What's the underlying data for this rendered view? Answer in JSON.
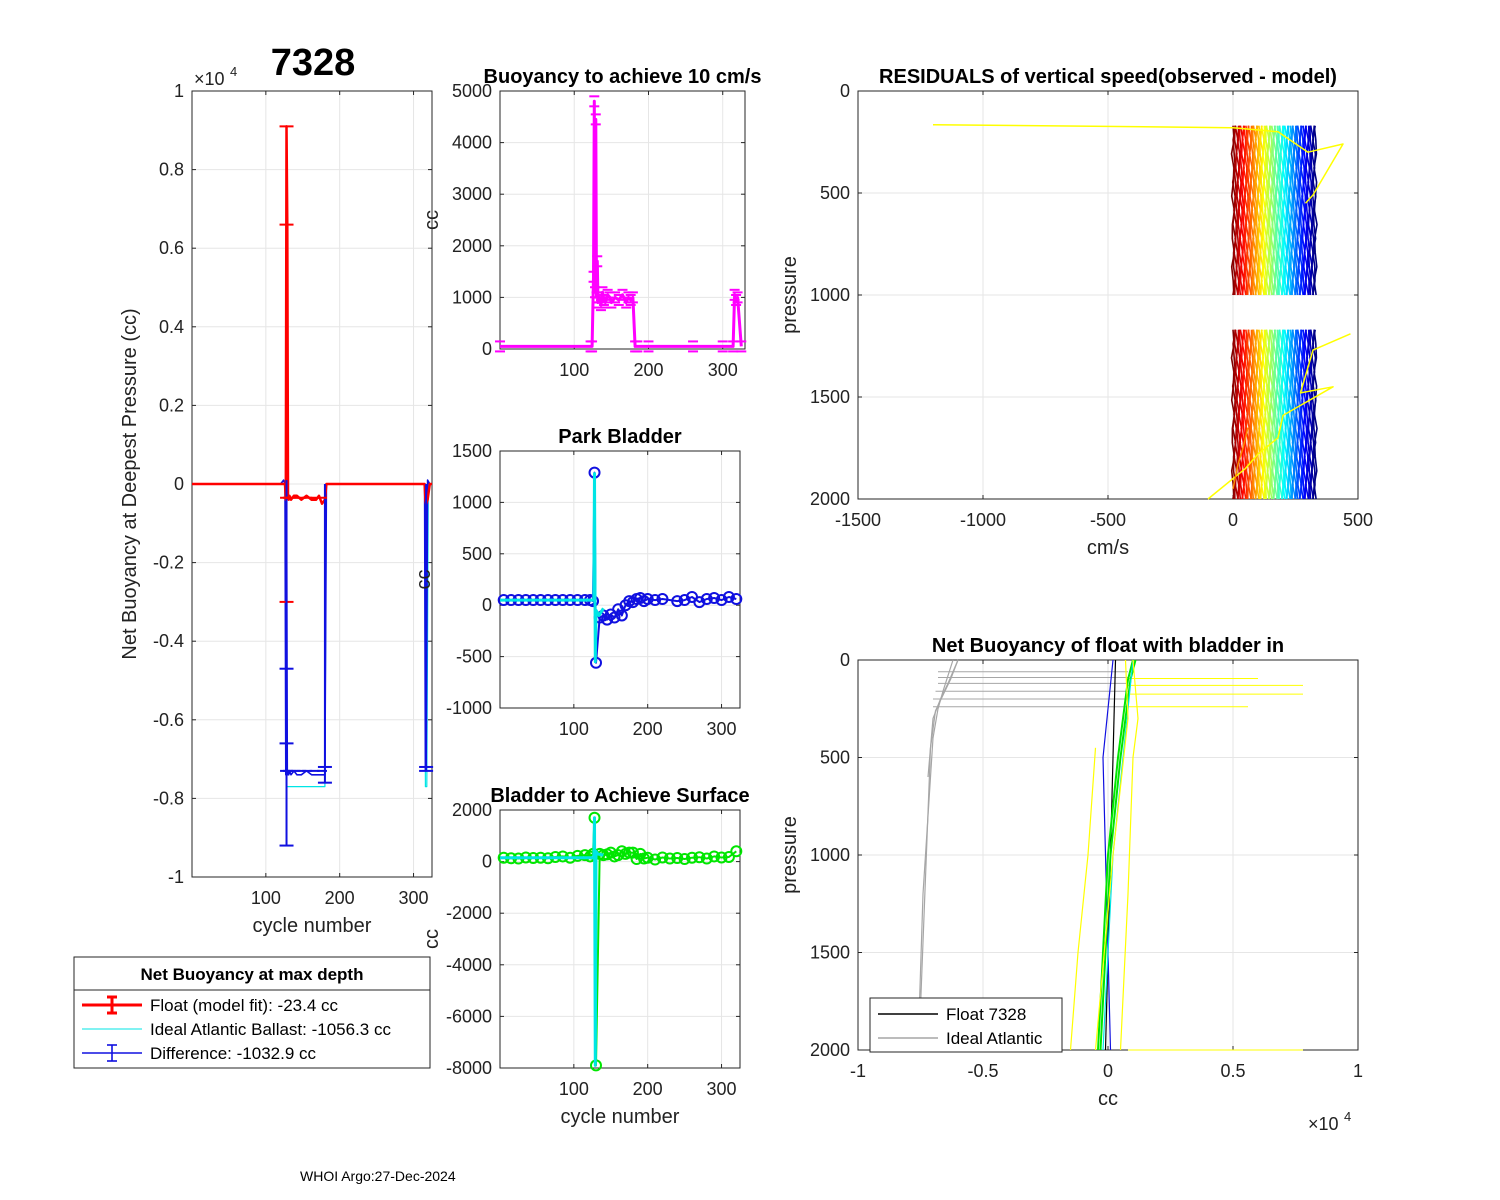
{
  "figure": {
    "title": "7328",
    "footer": "WHOI Argo:27-Dec-2024"
  },
  "chart_data": [
    {
      "id": "netbuoy",
      "type": "line",
      "title": "7328",
      "xlabel": "cycle number",
      "ylabel": "Net Buoyancy at Deepest Pressure (cc)",
      "exponent_label": "×10",
      "exponent_power": "4",
      "xlim": [
        0,
        325
      ],
      "ylim": [
        -1,
        1
      ],
      "xticks": [
        100,
        200,
        300
      ],
      "yticks": [
        -1,
        -0.8,
        -0.6,
        -0.4,
        -0.2,
        0,
        0.2,
        0.4,
        0.6,
        0.8,
        1
      ],
      "ytick_labels": [
        "-1",
        "-0.8",
        "-0.6",
        "-0.4",
        "-0.2",
        "0",
        "0.2",
        "0.4",
        "0.6",
        "0.8",
        "1"
      ],
      "series": [
        {
          "name": "Ideal Atlantic Ballast",
          "color": "#00e5e5",
          "x": [
            0,
            120,
            126,
            128,
            132,
            140,
            150,
            160,
            170,
            180,
            182,
            184,
            200,
            260,
            300,
            315,
            316,
            318,
            320
          ],
          "y": [
            0,
            0,
            0,
            -0.77,
            -0.77,
            -0.77,
            -0.77,
            -0.77,
            -0.77,
            -0.77,
            0,
            0,
            0,
            0,
            0,
            0,
            -0.77,
            -0.77,
            0
          ]
        },
        {
          "name": "Difference",
          "color": "#1010e0",
          "x": [
            0,
            120,
            124,
            126,
            127,
            128,
            129,
            130,
            131,
            132,
            134,
            138,
            142,
            148,
            155,
            162,
            170,
            176,
            180,
            182,
            184,
            200,
            260,
            300,
            314,
            315,
            316,
            317,
            319,
            322
          ],
          "y": [
            0,
            0,
            0.01,
            0,
            -0.74,
            0.01,
            -0.74,
            -0.73,
            -0.74,
            -0.73,
            -0.74,
            -0.73,
            -0.74,
            -0.74,
            -0.73,
            -0.74,
            -0.74,
            -0.74,
            -0.74,
            0,
            0,
            0,
            0,
            0,
            0,
            0,
            -0.73,
            -0.73,
            0.01,
            0
          ]
        },
        {
          "name": "Float (model fit)",
          "color": "#ff0000",
          "x": [
            0,
            120,
            124,
            126,
            127,
            128,
            129,
            130,
            131,
            132,
            134,
            138,
            142,
            148,
            155,
            162,
            168,
            172,
            176,
            180,
            182,
            184,
            200,
            260,
            300,
            314,
            315,
            316,
            317,
            319,
            322,
            325
          ],
          "y": [
            0,
            0,
            0,
            0,
            -0.04,
            0.91,
            0.66,
            -0.03,
            -0.04,
            -0.03,
            -0.04,
            -0.03,
            -0.03,
            -0.04,
            -0.03,
            -0.04,
            -0.04,
            -0.03,
            -0.05,
            -0.04,
            0,
            0,
            0,
            0,
            0,
            0,
            0,
            -0.04,
            -0.05,
            -0.04,
            0,
            0
          ]
        }
      ],
      "errorbars": [
        {
          "series": "Float (model fit)",
          "x": 128,
          "low": -0.3,
          "high": 0.91,
          "caps": [
            0.91,
            0.66,
            -0.3
          ]
        },
        {
          "series": "Difference",
          "x": 128,
          "low": -0.92,
          "high": 0.01,
          "caps": [
            -0.47,
            -0.66,
            -0.92
          ]
        },
        {
          "series": "Difference",
          "x": 180,
          "low": -0.76,
          "high": 0,
          "caps": [
            -0.72,
            -0.76
          ]
        },
        {
          "series": "Difference",
          "x": 317,
          "low": -0.73,
          "high": 0,
          "caps": [
            -0.72,
            -0.73
          ]
        }
      ],
      "legend": {
        "title": "Net Buoyancy at max depth",
        "entries": [
          {
            "label": "Float (model fit): -23.4 cc",
            "color": "#ff0000"
          },
          {
            "label": "Ideal Atlantic Ballast: -1056.3 cc",
            "color": "#00e5e5"
          },
          {
            "label": "Difference: -1032.9 cc",
            "color": "#1010e0"
          }
        ]
      }
    },
    {
      "id": "buoy10",
      "type": "line",
      "title": "Buoyancy to achieve 10 cm/s",
      "xlabel": "",
      "ylabel": "cc",
      "xlim": [
        0,
        330
      ],
      "ylim": [
        0,
        5000
      ],
      "xticks": [
        100,
        200,
        300
      ],
      "yticks": [
        0,
        1000,
        2000,
        3000,
        4000,
        5000
      ],
      "series": [
        {
          "name": "buoyancy",
          "color": "#ff00ff",
          "x": [
            0,
            122,
            124,
            126,
            127,
            128,
            129,
            130,
            131,
            132,
            134,
            136,
            138,
            140,
            142,
            145,
            148,
            150,
            155,
            160,
            165,
            170,
            173,
            176,
            179,
            182,
            185,
            200,
            260,
            300,
            314,
            316,
            318,
            320,
            325
          ],
          "y": [
            50,
            50,
            50,
            1400,
            4800,
            1100,
            4450,
            1000,
            1700,
            900,
            1000,
            850,
            1100,
            950,
            900,
            1050,
            1000,
            900,
            1000,
            950,
            1050,
            900,
            1000,
            950,
            1000,
            50,
            50,
            50,
            50,
            50,
            50,
            1050,
            950,
            1000,
            50
          ]
        }
      ]
    },
    {
      "id": "park",
      "type": "scatter",
      "title": "Park Bladder",
      "xlabel": "",
      "ylabel": "cc",
      "xlim": [
        0,
        325
      ],
      "ylim": [
        -1000,
        1500
      ],
      "xticks": [
        100,
        200,
        300
      ],
      "yticks": [
        -1000,
        -500,
        0,
        500,
        1000,
        1500
      ],
      "series": [
        {
          "name": "ideal",
          "color": "#00e5e5",
          "x": [
            0,
            120,
            127,
            128,
            129,
            130,
            134,
            140
          ],
          "y": [
            50,
            50,
            50,
            1280,
            -550,
            -50,
            -100,
            -30
          ]
        },
        {
          "name": "park",
          "color": "#1010e0",
          "x": [
            5,
            15,
            25,
            35,
            45,
            55,
            65,
            75,
            85,
            95,
            105,
            115,
            122,
            126,
            128,
            130,
            135,
            140,
            145,
            150,
            155,
            160,
            165,
            170,
            175,
            180,
            185,
            190,
            195,
            200,
            210,
            220,
            240,
            250,
            260,
            270,
            280,
            290,
            300,
            310,
            320
          ],
          "y": [
            50,
            50,
            50,
            50,
            50,
            50,
            50,
            50,
            50,
            50,
            50,
            50,
            50,
            40,
            1290,
            -560,
            -120,
            -100,
            -140,
            -90,
            -120,
            -40,
            -100,
            0,
            40,
            30,
            60,
            70,
            40,
            60,
            50,
            60,
            40,
            50,
            80,
            30,
            60,
            70,
            50,
            80,
            60
          ]
        }
      ]
    },
    {
      "id": "surface",
      "type": "scatter",
      "title": "Bladder to Achieve Surface",
      "xlabel": "cycle number",
      "ylabel": "cc",
      "xlim": [
        0,
        325
      ],
      "ylim": [
        -8000,
        2000
      ],
      "xticks": [
        100,
        200,
        300
      ],
      "yticks": [
        -8000,
        -6000,
        -4000,
        -2000,
        0,
        2000
      ],
      "series": [
        {
          "name": "ideal",
          "color": "#00e5e5",
          "x": [
            0,
            120,
            127,
            128,
            129,
            130,
            132,
            140
          ],
          "y": [
            150,
            150,
            150,
            1700,
            -7900,
            400,
            300,
            250
          ]
        },
        {
          "name": "surface",
          "color": "#00e600",
          "x": [
            5,
            15,
            25,
            35,
            45,
            55,
            65,
            75,
            85,
            95,
            105,
            115,
            122,
            126,
            128,
            130,
            135,
            140,
            145,
            150,
            155,
            160,
            165,
            170,
            175,
            180,
            185,
            190,
            195,
            200,
            210,
            220,
            230,
            240,
            250,
            260,
            270,
            280,
            290,
            300,
            310,
            320
          ],
          "y": [
            150,
            130,
            120,
            160,
            140,
            150,
            130,
            180,
            200,
            150,
            220,
            250,
            200,
            300,
            1700,
            -7900,
            300,
            250,
            280,
            350,
            200,
            250,
            400,
            300,
            350,
            350,
            100,
            300,
            120,
            150,
            80,
            160,
            120,
            140,
            100,
            150,
            170,
            120,
            200,
            160,
            180,
            400
          ]
        }
      ]
    },
    {
      "id": "residuals",
      "type": "line",
      "title": "RESIDUALS of vertical speed(observed - model)",
      "xlabel": "cm/s",
      "ylabel": "pressure",
      "xlim": [
        -1500,
        500
      ],
      "ylim": [
        0,
        2000
      ],
      "y_reversed": true,
      "xticks": [
        -1500,
        -1000,
        -500,
        0,
        500
      ],
      "yticks": [
        0,
        500,
        1000,
        1500,
        2000
      ],
      "colormap": "jet",
      "band": {
        "x_start": 0,
        "x_end": 330,
        "segments": [
          [
            170,
            1000
          ],
          [
            1170,
            2000
          ]
        ]
      },
      "outliers": [
        {
          "color": "#ffff00",
          "x": [
            -1200,
            0,
            180,
            300,
            440,
            320,
            290
          ],
          "y": [
            165,
            180,
            200,
            300,
            260,
            510,
            550
          ]
        },
        {
          "color": "#ffff00",
          "x": [
            470,
            320,
            270,
            400,
            200,
            180,
            100,
            50,
            -100
          ],
          "y": [
            1190,
            1270,
            1480,
            1450,
            1590,
            1700,
            1780,
            1850,
            2000
          ]
        },
        {
          "color": "#ff8800",
          "x": [
            60,
            40,
            20,
            0
          ],
          "y": [
            1650,
            1750,
            1830,
            1950
          ]
        }
      ]
    },
    {
      "id": "netbladder",
      "type": "line",
      "title": "Net Buoyancy of float with bladder in",
      "xlabel": "cc",
      "ylabel": "pressure",
      "exponent_label": "×10",
      "exponent_power": "4",
      "xlim": [
        -1,
        1
      ],
      "ylim": [
        0,
        2000
      ],
      "y_reversed": true,
      "xticks": [
        -1,
        -0.5,
        0,
        0.5,
        1
      ],
      "xtick_labels": [
        "-1",
        "-0.5",
        "0",
        "0.5",
        "1"
      ],
      "yticks": [
        0,
        500,
        1000,
        1500,
        2000
      ],
      "series": [
        {
          "name": "Ideal Atlantic",
          "color": "#a6a6a6",
          "x": [
            -0.62,
            -0.64,
            -0.66,
            -0.68,
            -0.7,
            -0.74,
            -0.76
          ],
          "y": [
            0,
            80,
            160,
            250,
            400,
            1200,
            2000
          ]
        },
        {
          "name": "Ideal Atlantic 2",
          "color": "#a6a6a6",
          "x": [
            -0.6,
            -0.63,
            -0.66,
            -0.69,
            -0.71,
            -0.75
          ],
          "y": [
            0,
            100,
            180,
            260,
            450,
            1780
          ]
        },
        {
          "name": "Ideal Atlantic 3",
          "color": "#a6a6a6",
          "x": [
            -0.6,
            -0.64,
            -0.67,
            -0.7,
            -0.72
          ],
          "y": [
            0,
            120,
            200,
            300,
            600
          ]
        },
        {
          "name": "Float 7328",
          "color": "#000000",
          "x": [
            -0.01,
            0,
            0.01,
            0.02,
            0.03
          ],
          "y": [
            2000,
            1500,
            1000,
            500,
            0
          ]
        },
        {
          "name": "Float blue",
          "color": "#1010e0",
          "x": [
            0.01,
            0,
            -0.01,
            -0.02,
            0.02
          ],
          "y": [
            2000,
            1500,
            1000,
            500,
            0
          ]
        },
        {
          "name": "Float green 1",
          "color": "#00e600",
          "x": [
            -0.04,
            -0.02,
            0,
            0.04,
            0.08,
            0.1
          ],
          "y": [
            2000,
            1500,
            1000,
            500,
            100,
            0
          ]
        },
        {
          "name": "Float green 2",
          "color": "#00e600",
          "x": [
            -0.03,
            -0.01,
            0.01,
            0.05,
            0.09,
            0.11
          ],
          "y": [
            2000,
            1500,
            1000,
            500,
            100,
            0
          ]
        },
        {
          "name": "Float cyan",
          "color": "#00e5e5",
          "x": [
            -0.02,
            0,
            0.02,
            0.06,
            0.1
          ],
          "y": [
            2000,
            1500,
            1000,
            500,
            0
          ]
        },
        {
          "name": "Float yellow left",
          "color": "#ffff00",
          "x": [
            -0.15,
            -0.12,
            -0.08,
            -0.05
          ],
          "y": [
            2000,
            1500,
            1000,
            450
          ]
        },
        {
          "name": "Float yellow right",
          "color": "#ffff00",
          "x": [
            0.05,
            0.08,
            0.1,
            0.12,
            0.1
          ],
          "y": [
            2000,
            1200,
            500,
            300,
            0
          ]
        },
        {
          "name": "Float yellow 3",
          "color": "#ffff00",
          "x": [
            -0.05,
            0.02,
            0.08,
            0.07
          ],
          "y": [
            2000,
            1000,
            300,
            0
          ]
        }
      ],
      "steps": [
        {
          "color": "#a6a6a6",
          "x1": -0.68,
          "x2": 0.08,
          "y": 60
        },
        {
          "color": "#a6a6a6",
          "x1": -0.68,
          "x2": 0.08,
          "y": 90
        },
        {
          "color": "#a6a6a6",
          "x1": -0.68,
          "x2": 0.08,
          "y": 120
        },
        {
          "color": "#a6a6a6",
          "x1": -0.69,
          "x2": 0.08,
          "y": 160
        },
        {
          "color": "#a6a6a6",
          "x1": -0.7,
          "x2": 0.08,
          "y": 200
        },
        {
          "color": "#a6a6a6",
          "x1": -0.7,
          "x2": 0.08,
          "y": 240
        },
        {
          "color": "#ffff00",
          "x1": 0.08,
          "x2": 0.6,
          "y": 95
        },
        {
          "color": "#ffff00",
          "x1": 0.08,
          "x2": 0.78,
          "y": 130
        },
        {
          "color": "#ffff00",
          "x1": 0.08,
          "x2": 0.78,
          "y": 175
        },
        {
          "color": "#ffff00",
          "x1": 0.08,
          "x2": 0.56,
          "y": 240
        },
        {
          "color": "#ffff00",
          "x1": 0.08,
          "x2": 0.78,
          "y": 2000
        }
      ],
      "legend": {
        "entries": [
          {
            "label": "Float 7328",
            "color": "#000000"
          },
          {
            "label": "Ideal Atlantic",
            "color": "#a6a6a6"
          }
        ]
      }
    }
  ]
}
